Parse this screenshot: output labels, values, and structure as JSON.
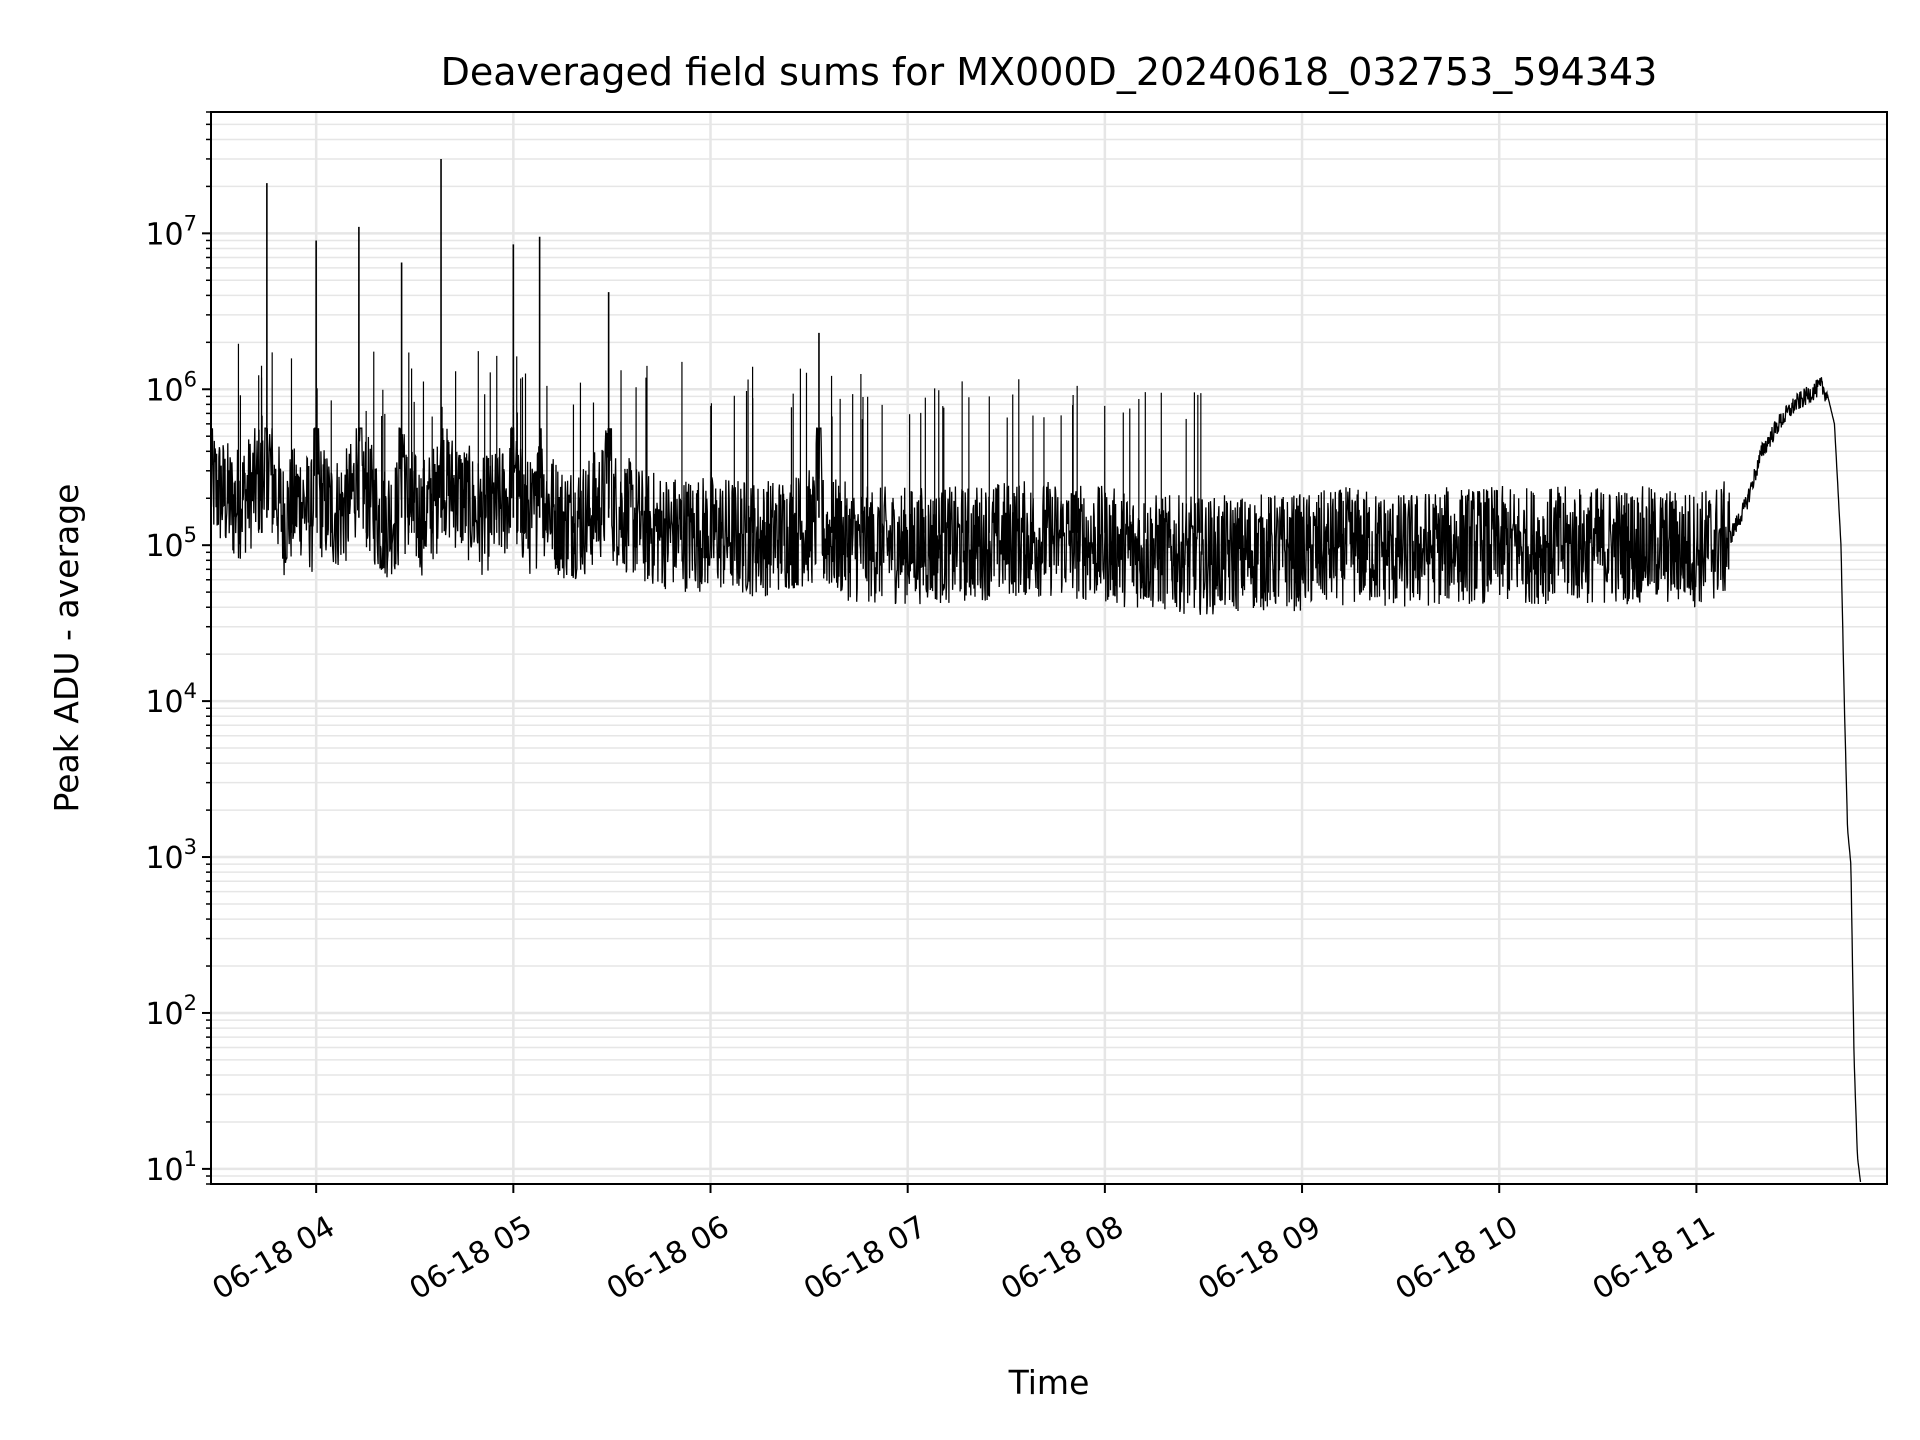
{
  "chart_data": {
    "type": "line",
    "title": "Deaveraged field sums for MX000D_20240618_032753_594343",
    "xlabel": "Time",
    "ylabel": "Peak ADU - average",
    "yscale": "log",
    "ylim": [
      8,
      60000000
    ],
    "xlim": [
      "06-18 03:28",
      "06-18 11:58"
    ],
    "grid": "on",
    "legend": "none",
    "colors": {
      "line": "#000000",
      "grid": "#e6e6e6",
      "axes": "#000000"
    },
    "x_ticks": [
      {
        "label": "06-18 04",
        "x": "06-18 04:00"
      },
      {
        "label": "06-18 05",
        "x": "06-18 05:00"
      },
      {
        "label": "06-18 06",
        "x": "06-18 06:00"
      },
      {
        "label": "06-18 07",
        "x": "06-18 07:00"
      },
      {
        "label": "06-18 08",
        "x": "06-18 08:00"
      },
      {
        "label": "06-18 09",
        "x": "06-18 09:00"
      },
      {
        "label": "06-18 10",
        "x": "06-18 10:00"
      },
      {
        "label": "06-18 11",
        "x": "06-18 11:00"
      }
    ],
    "y_ticks": [
      {
        "base": "10",
        "exp": "1",
        "value": 10
      },
      {
        "base": "10",
        "exp": "2",
        "value": 100
      },
      {
        "base": "10",
        "exp": "3",
        "value": 1000
      },
      {
        "base": "10",
        "exp": "4",
        "value": 10000
      },
      {
        "base": "10",
        "exp": "5",
        "value": 100000
      },
      {
        "base": "10",
        "exp": "6",
        "value": 1000000
      },
      {
        "base": "10",
        "exp": "7",
        "value": 10000000
      }
    ],
    "series": [
      {
        "x": [
          "06-18 03:28",
          "06-18 03:35",
          "06-18 03:40",
          "06-18 03:44",
          "06-18 03:45",
          "06-18 03:46",
          "06-18 03:50",
          "06-18 03:55",
          "06-18 03:59",
          "06-18 04:00",
          "06-18 04:01",
          "06-18 04:05",
          "06-18 04:10",
          "06-18 04:12",
          "06-18 04:13",
          "06-18 04:14",
          "06-18 04:20",
          "06-18 04:25",
          "06-18 04:26",
          "06-18 04:27",
          "06-18 04:32",
          "06-18 04:37",
          "06-18 04:38",
          "06-18 04:39",
          "06-18 04:45",
          "06-18 04:50",
          "06-18 04:59",
          "06-18 05:00",
          "06-18 05:01",
          "06-18 05:05",
          "06-18 05:07",
          "06-18 05:08",
          "06-18 05:09",
          "06-18 05:15",
          "06-18 05:22",
          "06-18 05:28",
          "06-18 05:29",
          "06-18 05:30",
          "06-18 05:40",
          "06-18 05:50",
          "06-18 06:00",
          "06-18 06:15",
          "06-18 06:30",
          "06-18 06:32",
          "06-18 06:33",
          "06-18 06:34",
          "06-18 06:45",
          "06-18 07:00",
          "06-18 07:15",
          "06-18 07:30",
          "06-18 07:45",
          "06-18 08:00",
          "06-18 08:15",
          "06-18 08:30",
          "06-18 08:45",
          "06-18 09:00",
          "06-18 09:15",
          "06-18 09:30",
          "06-18 09:45",
          "06-18 10:00",
          "06-18 10:15",
          "06-18 10:30",
          "06-18 10:45",
          "06-18 11:00",
          "06-18 11:10",
          "06-18 11:15",
          "06-18 11:20",
          "06-18 11:25",
          "06-18 11:30",
          "06-18 11:35",
          "06-18 11:38",
          "06-18 11:40",
          "06-18 11:42",
          "06-18 11:44",
          "06-18 11:45",
          "06-18 11:46",
          "06-18 11:47",
          "06-18 11:48",
          "06-18 11:49",
          "06-18 11:50"
        ],
        "y": [
          250000,
          180000,
          220000,
          280000,
          21000000,
          300000,
          150000,
          200000,
          150000,
          9000000,
          200000,
          160000,
          180000,
          250000,
          11000000,
          250000,
          140000,
          160000,
          6500000,
          200000,
          150000,
          200000,
          30000000,
          250000,
          200000,
          150000,
          200000,
          8500000,
          200000,
          150000,
          150000,
          9500000,
          200000,
          140000,
          150000,
          200000,
          4200000,
          180000,
          130000,
          120000,
          120000,
          110000,
          130000,
          130000,
          2300000,
          120000,
          100000,
          100000,
          100000,
          110000,
          110000,
          100000,
          90000,
          85000,
          90000,
          90000,
          100000,
          90000,
          100000,
          100000,
          100000,
          100000,
          100000,
          95000,
          110000,
          180000,
          400000,
          600000,
          800000,
          950000,
          1050000,
          900000,
          600000,
          100000,
          10000,
          1500,
          900,
          50,
          12,
          8
        ]
      }
    ]
  }
}
